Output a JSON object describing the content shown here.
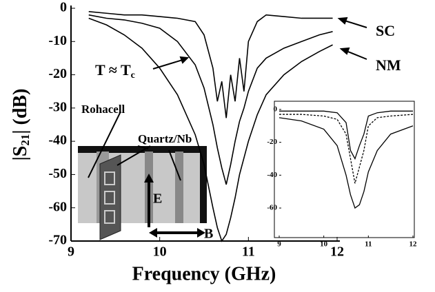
{
  "chart_data": [
    {
      "type": "line",
      "xlabel": "Frequency (GHz)",
      "ylabel_parts": [
        "|S",
        "21",
        "| (dB)"
      ],
      "xlim": [
        9,
        12
      ],
      "ylim": [
        -70,
        0
      ],
      "xticks": [
        9,
        10,
        11,
        12
      ],
      "yticks": [
        0,
        -10,
        -20,
        -30,
        -40,
        -50,
        -60,
        -70
      ],
      "x": [
        9.2,
        9.4,
        9.6,
        9.8,
        10.0,
        10.2,
        10.4,
        10.5,
        10.6,
        10.65,
        10.7,
        10.75,
        10.8,
        10.85,
        10.9,
        10.95,
        11.0,
        11.1,
        11.2,
        11.4,
        11.6,
        11.8,
        11.95
      ],
      "series": [
        {
          "name": "SC",
          "color": "#000000",
          "values": [
            -1,
            -1.5,
            -2,
            -2,
            -2.5,
            -3,
            -4,
            -8,
            -18,
            -28,
            -22,
            -33,
            -20,
            -28,
            -15,
            -25,
            -10,
            -4,
            -2,
            -2.5,
            -3,
            -3,
            -3
          ]
        },
        {
          "name_parts": [
            "T ≈ T",
            "c"
          ],
          "color": "#000000",
          "values": [
            -2,
            -3,
            -3.5,
            -4.5,
            -6,
            -10,
            -17,
            -24,
            -35,
            -42,
            -48,
            -53,
            -47,
            -40,
            -34,
            -30,
            -25,
            -18,
            -15,
            -12,
            -10,
            -8,
            -7
          ]
        },
        {
          "name": "NM",
          "color": "#000000",
          "values": [
            -3,
            -5,
            -8,
            -12,
            -18,
            -26,
            -38,
            -47,
            -60,
            -66,
            -70,
            -68,
            -63,
            -57,
            -50,
            -45,
            -40,
            -32,
            -26,
            -20,
            -16,
            -13,
            -11
          ]
        }
      ]
    },
    {
      "type": "line",
      "xlim": [
        9,
        12
      ],
      "ylim": [
        -78,
        5
      ],
      "xticks": [
        9,
        10,
        11,
        12
      ],
      "yticks": [
        0,
        -20,
        -40,
        -60
      ],
      "x": [
        9,
        9.5,
        10,
        10.3,
        10.5,
        10.6,
        10.7,
        10.8,
        10.9,
        11,
        11.2,
        11.5,
        12
      ],
      "series": [
        {
          "color": "#000000",
          "dashed": false,
          "values": [
            -1,
            -1,
            -1,
            -2,
            -8,
            -25,
            -30,
            -22,
            -15,
            -4,
            -2,
            -1,
            -1
          ]
        },
        {
          "color": "#000000",
          "dashed": true,
          "values": [
            -3,
            -3,
            -4,
            -6,
            -15,
            -30,
            -45,
            -35,
            -25,
            -10,
            -5,
            -4,
            -3
          ]
        },
        {
          "color": "#000000",
          "dashed": false,
          "values": [
            -5,
            -7,
            -12,
            -22,
            -40,
            -52,
            -60,
            -58,
            -50,
            -38,
            -25,
            -15,
            -10
          ]
        }
      ]
    }
  ],
  "diagram": {
    "labels": [
      "Rohacell",
      "Quartz/Nb",
      "E",
      "B"
    ]
  }
}
